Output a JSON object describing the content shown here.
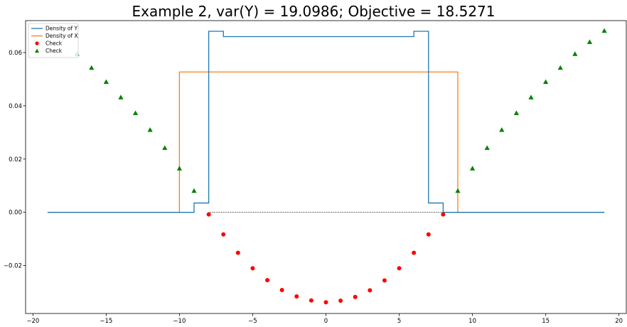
{
  "chart_data": {
    "type": "line",
    "title": "Example 2, var(Y) = 19.0986; Objective = 18.5271",
    "xlabel": "",
    "ylabel": "",
    "xlim": [
      -20.5,
      20.5
    ],
    "ylim": [
      -0.038,
      0.072
    ],
    "x_ticks": [
      -20,
      -15,
      -10,
      -5,
      0,
      5,
      10,
      15,
      20
    ],
    "x_tick_labels": [
      "−20",
      "−15",
      "−10",
      "−5",
      "0",
      "5",
      "10",
      "15",
      "20"
    ],
    "y_ticks": [
      -0.02,
      0.0,
      0.02,
      0.04,
      0.06
    ],
    "y_tick_labels": [
      "−0.02",
      "0.00",
      "0.02",
      "0.04",
      "0.06"
    ],
    "grid": false,
    "legend": {
      "placement": "top-left",
      "entries": [
        {
          "label": "Density of Y",
          "style": "line",
          "color": "#1f77b4"
        },
        {
          "label": "Density of X",
          "style": "line",
          "color": "#ff7f0e"
        },
        {
          "label": "Check",
          "style": "circle",
          "color": "#ff0000"
        },
        {
          "label": "Check",
          "style": "triangle",
          "color": "#008000"
        }
      ]
    },
    "series": [
      {
        "name": "Density of Y",
        "style": "step",
        "color": "#1f77b4",
        "x": [
          -19,
          -9,
          -9,
          -8,
          -8,
          -7,
          -7,
          6,
          6,
          7,
          7,
          8,
          8,
          19
        ],
        "y": [
          0,
          0,
          0.0035,
          0.0035,
          0.068,
          0.068,
          0.066,
          0.066,
          0.068,
          0.068,
          0.0035,
          0.0035,
          0,
          0
        ]
      },
      {
        "name": "Density of X",
        "style": "step",
        "color": "#ff7f0e",
        "x": [
          -19,
          -10,
          -10,
          9,
          9,
          19
        ],
        "y": [
          0,
          0,
          0.0527,
          0.0527,
          0,
          0
        ]
      },
      {
        "name": "Check",
        "style": "circle",
        "color": "#ff0000",
        "x": [
          -8,
          -7,
          -6,
          -5,
          -4,
          -3,
          -2,
          -1,
          0,
          1,
          2,
          3,
          4,
          5,
          6,
          7,
          8
        ],
        "y": [
          -0.0008,
          -0.0083,
          -0.0152,
          -0.021,
          -0.0255,
          -0.0292,
          -0.0316,
          -0.0331,
          -0.0338,
          -0.0332,
          -0.0318,
          -0.0293,
          -0.0256,
          -0.021,
          -0.0152,
          -0.0083,
          -0.0008
        ]
      },
      {
        "name": "Check",
        "style": "triangle",
        "color": "#008000",
        "x": [
          -17,
          -16,
          -15,
          -14,
          -13,
          -12,
          -11,
          -10,
          -9,
          9,
          10,
          11,
          12,
          13,
          14,
          15,
          16,
          17,
          18,
          19
        ],
        "y": [
          0.0595,
          0.0543,
          0.049,
          0.0432,
          0.0373,
          0.031,
          0.0242,
          0.0165,
          0.0081,
          0.0081,
          0.0165,
          0.0242,
          0.031,
          0.0373,
          0.0432,
          0.049,
          0.0543,
          0.0595,
          0.064,
          0.0682
        ]
      }
    ],
    "reference_line": {
      "y": 0,
      "x_range": [
        -8,
        8
      ],
      "style": "dotted",
      "color": "#000000"
    }
  }
}
